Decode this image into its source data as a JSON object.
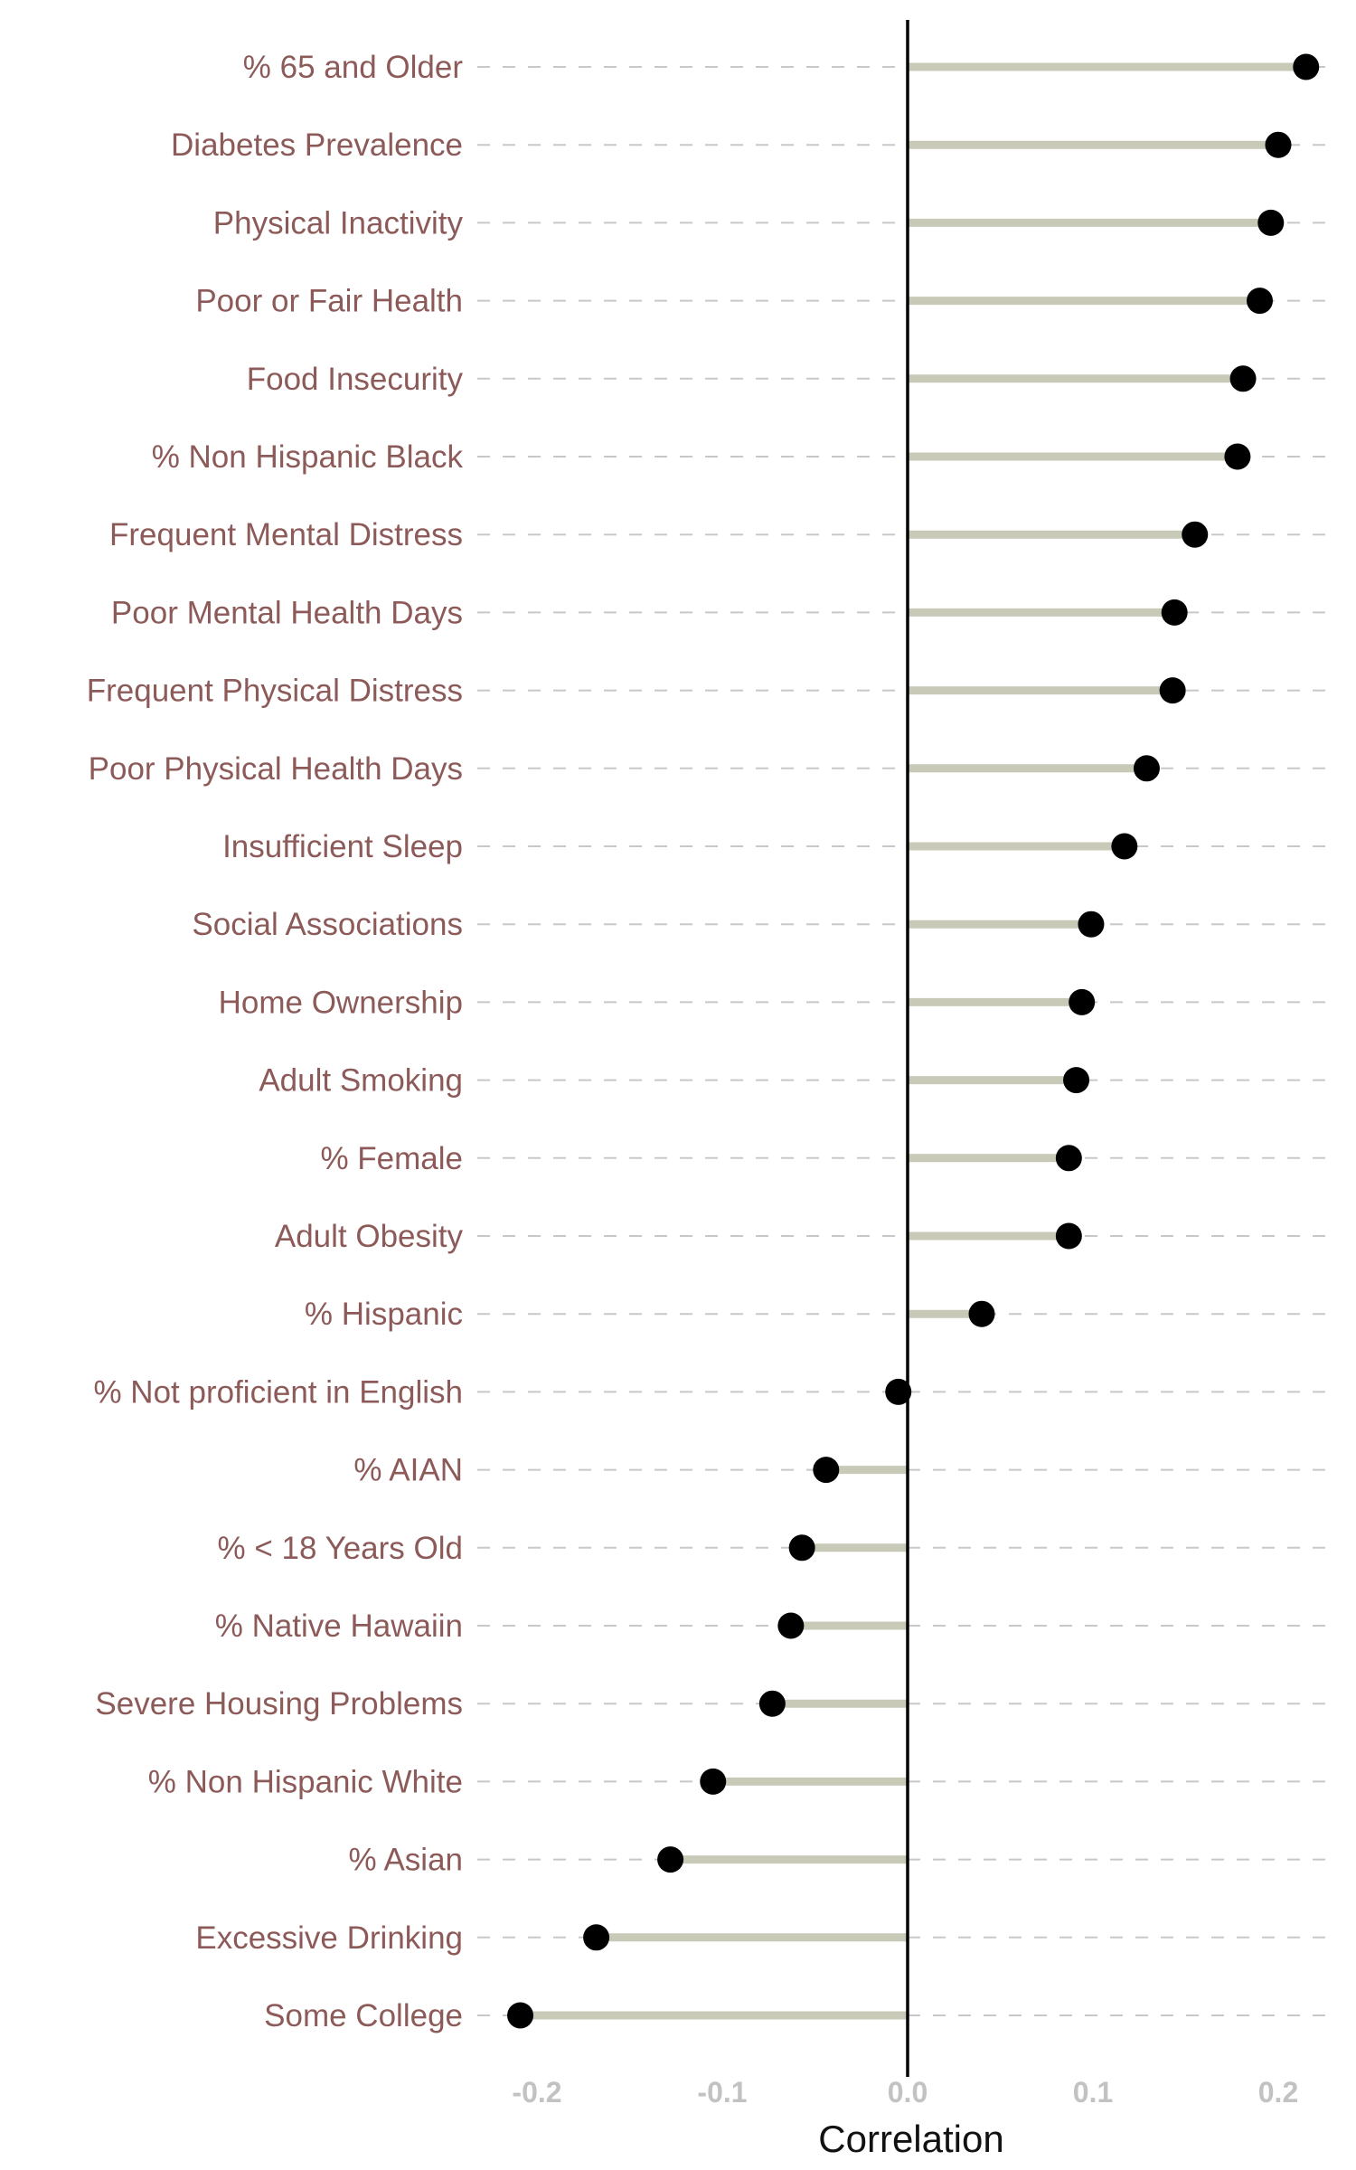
{
  "chart_data": {
    "type": "lollipop",
    "xlabel": "Correlation",
    "ylabel": "",
    "xlim": [
      -0.225,
      0.235
    ],
    "x_ticks": [
      -0.2,
      -0.1,
      0.0,
      0.1,
      0.2
    ],
    "x_tick_labels": [
      "-0.2",
      "-0.1",
      "0.0",
      "0.1",
      "0.2"
    ],
    "grid": "horizontal dashed",
    "reference_line": 0,
    "colors": {
      "label": "#8c5a58",
      "stem": "#c8c9b6",
      "point": "#000000",
      "tick": "#c2c2c2",
      "grid": "#c8c8c8"
    },
    "categories": [
      "% 65 and Older",
      "Diabetes Prevalence",
      "Physical Inactivity",
      "Poor or Fair Health",
      "Food Insecurity",
      "% Non Hispanic Black",
      "Frequent Mental Distress",
      "Poor Mental Health Days",
      "Frequent Physical Distress",
      "Poor Physical Health Days",
      "Insufficient Sleep",
      "Social Associations",
      "Home Ownership",
      "Adult Smoking",
      "% Female",
      "Adult Obesity",
      "% Hispanic",
      "% Not proficient in English",
      "% AIAN",
      "% < 18 Years Old",
      "% Native Hawaiin",
      "Severe Housing Problems",
      "% Non Hispanic White",
      "% Asian",
      "Excessive Drinking",
      "Some College"
    ],
    "values": [
      0.215,
      0.2,
      0.196,
      0.19,
      0.181,
      0.178,
      0.155,
      0.144,
      0.143,
      0.129,
      0.117,
      0.099,
      0.094,
      0.091,
      0.087,
      0.087,
      0.04,
      -0.005,
      -0.044,
      -0.057,
      -0.063,
      -0.073,
      -0.105,
      -0.128,
      -0.168,
      -0.209
    ]
  }
}
